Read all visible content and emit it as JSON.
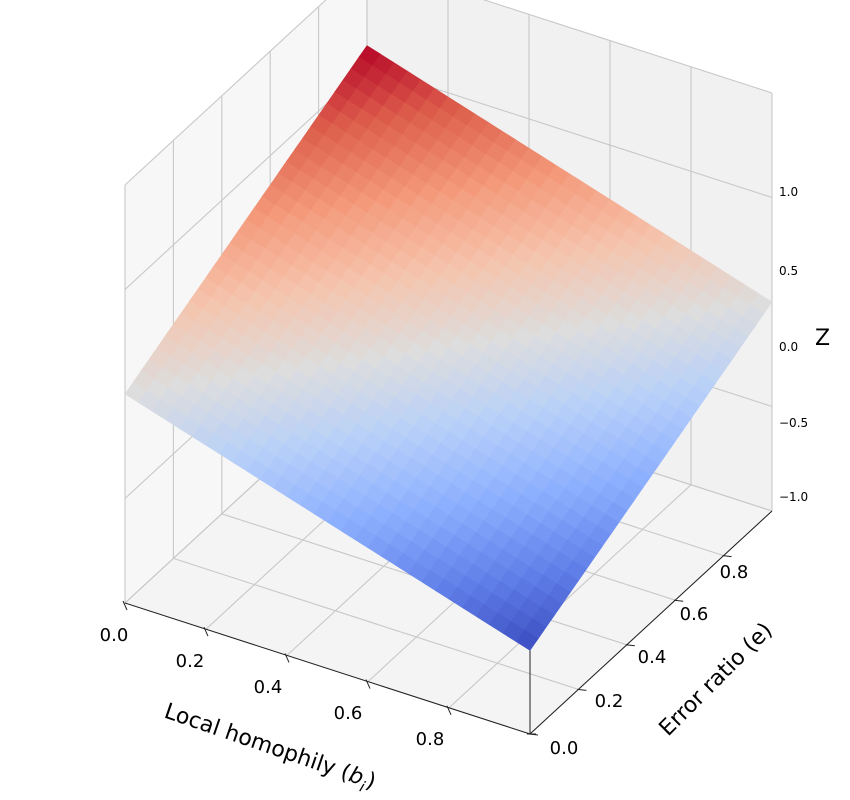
{
  "chart_data": {
    "type": "surface",
    "title": "",
    "xlabel_main": "Local homophily (",
    "xlabel_var": "b",
    "xlabel_sub": "i",
    "xlabel_close": ")",
    "ylabel": "Error ratio (e)",
    "zlabel": "Z",
    "xlim": [
      0,
      1
    ],
    "ylim": [
      0,
      1
    ],
    "zlim": [
      -1,
      1
    ],
    "x_ticks": [
      "0.0",
      "0.2",
      "0.4",
      "0.6",
      "0.8"
    ],
    "y_ticks": [
      "0.0",
      "0.2",
      "0.4",
      "0.6",
      "0.8"
    ],
    "z_ticks": [
      "−1.0",
      "−0.5",
      "0.0",
      "0.5",
      "1.0"
    ],
    "colormap": "coolwarm",
    "grid": true,
    "surface_corners": [
      {
        "x": 0,
        "y": 0,
        "z": 0.0
      },
      {
        "x": 1,
        "y": 0,
        "z": -0.6
      },
      {
        "x": 0,
        "y": 1,
        "z": 0.6
      },
      {
        "x": 1,
        "y": 1,
        "z": 0.0
      }
    ]
  }
}
